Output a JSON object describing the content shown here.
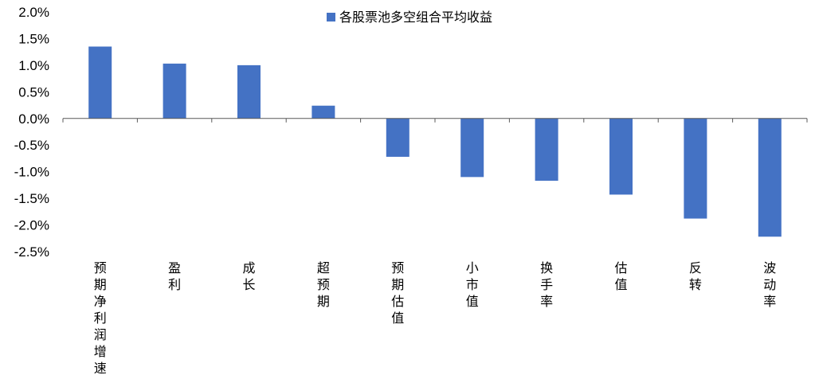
{
  "chart_data": {
    "type": "bar",
    "categories": [
      "预期净利润增速",
      "盈利",
      "成长",
      "超预期",
      "预期估值",
      "小市值",
      "换手率",
      "估值",
      "反转",
      "波动率"
    ],
    "series": [
      {
        "name": "各股票池多空组合平均收益",
        "values": [
          1.35,
          1.03,
          1.0,
          0.24,
          -0.72,
          -1.1,
          -1.17,
          -1.43,
          -1.88,
          -2.22
        ]
      }
    ],
    "yticks": [
      "2.0%",
      "1.5%",
      "1.0%",
      "0.5%",
      "0.0%",
      "-0.5%",
      "-1.0%",
      "-1.5%",
      "-2.0%",
      "-2.5%"
    ],
    "ylim": [
      -2.5,
      2.0
    ],
    "unit": "%",
    "legend_position": "top",
    "grid": false,
    "colors": {
      "bar": "#4472C4",
      "axis": "#595959"
    }
  }
}
